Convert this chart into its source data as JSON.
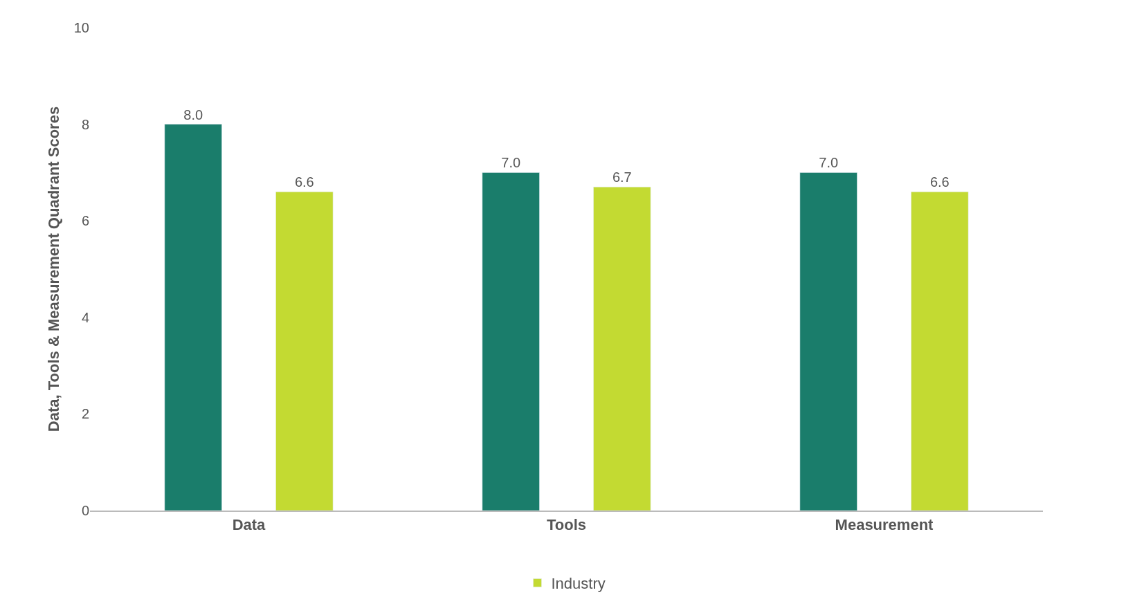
{
  "chart_data": {
    "type": "bar",
    "ylabel": "Data, Tools & Measurement Quadrant Scores",
    "categories": [
      "Data",
      "Tools",
      "Measurement"
    ],
    "series": [
      {
        "color": "#1a7d6b",
        "values": [
          8.0,
          7.0,
          7.0
        ],
        "value_labels": [
          "8.0",
          "7.0",
          "7.0"
        ]
      },
      {
        "name": "Industry",
        "color": "#c3da32",
        "values": [
          6.6,
          6.7,
          6.6
        ],
        "value_labels": [
          "6.6",
          "6.7",
          "6.6"
        ]
      }
    ],
    "ylim": [
      0,
      10
    ],
    "yticks": [
      0,
      2,
      4,
      6,
      8,
      10
    ],
    "legend": "bottom"
  }
}
